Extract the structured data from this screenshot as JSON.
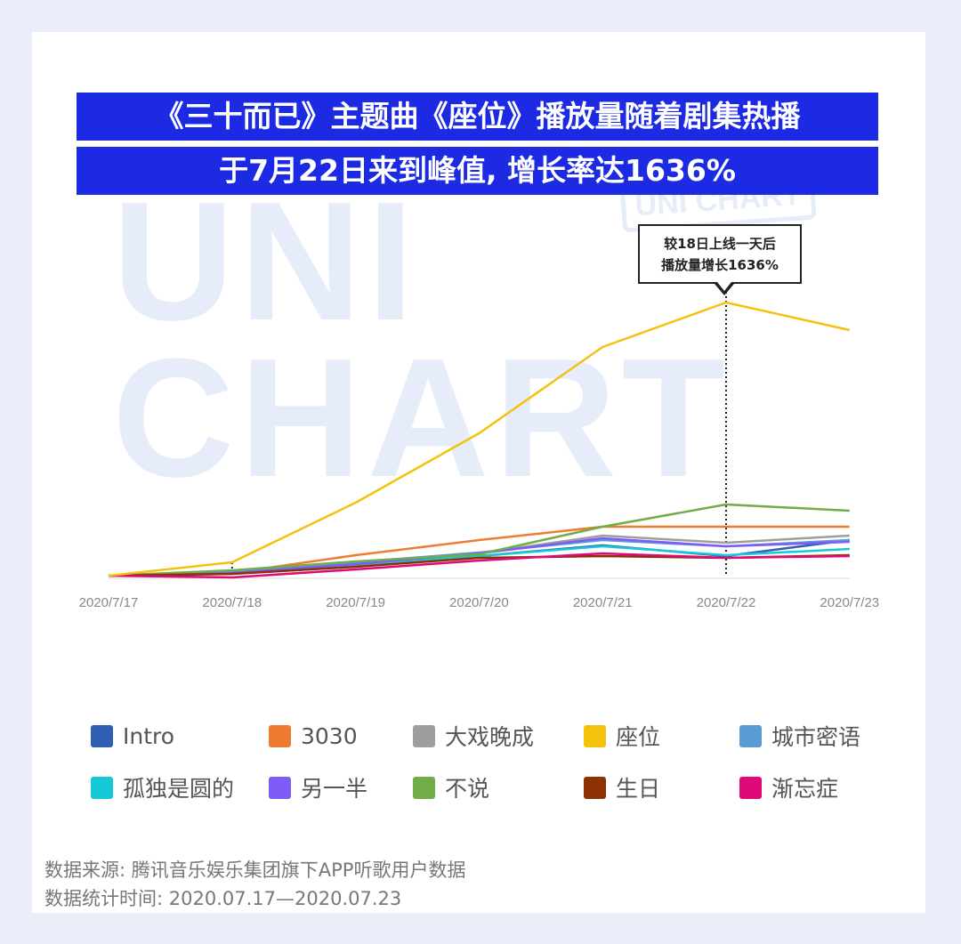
{
  "title_line1": "《三十而已》主题曲《座位》播放量随着剧集热播",
  "title_line2": "于7月22日来到峰值, 增长率达1636%",
  "watermark": {
    "text": "UNI\nCHART",
    "badge": "UNI CHART"
  },
  "callout": {
    "line1": "较18日上线一天后",
    "line2": "播放量增长1636%"
  },
  "source": {
    "line1": "数据来源: 腾讯音乐娱乐集团旗下APP听歌用户数据",
    "line2": "数据统计时间: 2020.07.17—2020.07.23"
  },
  "chart_data": {
    "type": "line",
    "categories": [
      "2020/7/17",
      "2020/7/18",
      "2020/7/19",
      "2020/7/20",
      "2020/7/21",
      "2020/7/22",
      "2020/7/23"
    ],
    "grid": false,
    "legend_position": "bottom",
    "annotated_category": "2020/7/22",
    "series": [
      {
        "name": "Intro",
        "color": "#2f5fb3",
        "values": [
          0,
          2,
          10,
          22,
          34,
          22,
          40
        ]
      },
      {
        "name": "3030",
        "color": "#ee7b31",
        "values": [
          0,
          3,
          23,
          40,
          55,
          55,
          55
        ]
      },
      {
        "name": "大戏晚成",
        "color": "#9e9e9e",
        "values": [
          0,
          5,
          15,
          25,
          45,
          37,
          45
        ]
      },
      {
        "name": "座位",
        "color": "#f4c20d",
        "values": [
          0,
          15,
          82,
          160,
          257,
          307,
          276
        ]
      },
      {
        "name": "城市密语",
        "color": "#5b9bd5",
        "values": [
          0,
          4,
          15,
          26,
          40,
          33,
          40
        ]
      },
      {
        "name": "孤独是圆的",
        "color": "#17c9d6",
        "values": [
          0,
          3,
          12,
          22,
          33,
          23,
          30
        ]
      },
      {
        "name": "另一半",
        "color": "#7f5cf7",
        "values": [
          0,
          3,
          13,
          25,
          42,
          33,
          38
        ]
      },
      {
        "name": "不说",
        "color": "#70ad47",
        "values": [
          0,
          6,
          16,
          24,
          55,
          80,
          73
        ]
      },
      {
        "name": "生日",
        "color": "#8b3103",
        "values": [
          0,
          2,
          10,
          20,
          22,
          20,
          23
        ]
      },
      {
        "name": "渐忘症",
        "color": "#e0097a",
        "values": [
          0,
          -2,
          7,
          17,
          25,
          20,
          22
        ]
      }
    ]
  }
}
